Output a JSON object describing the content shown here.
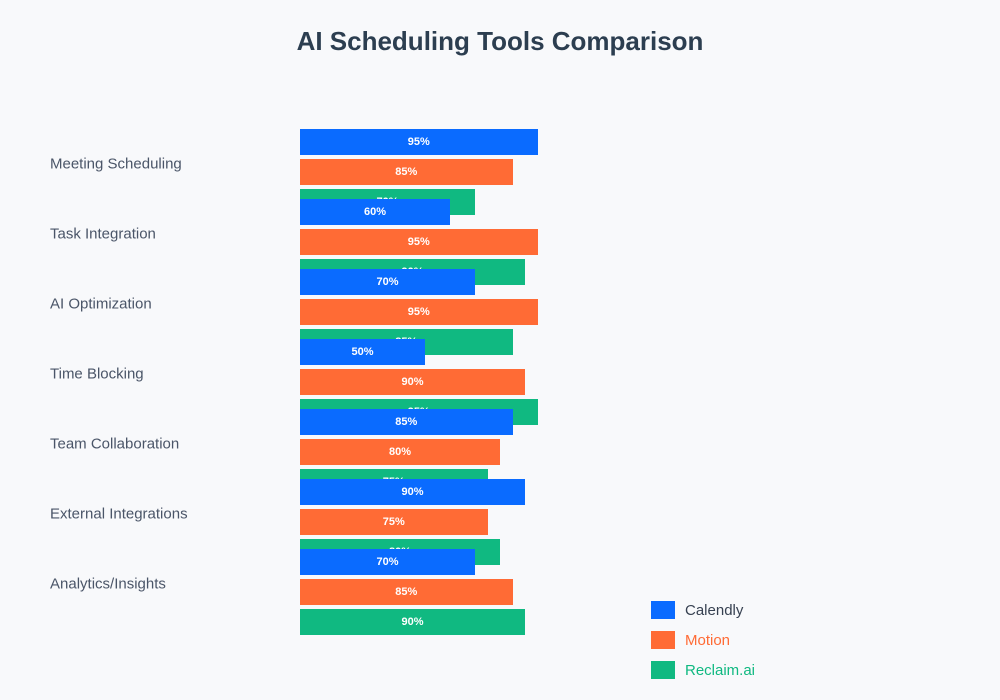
{
  "title": "AI Scheduling Tools Comparison",
  "colors": {
    "background": "#f8f9fb",
    "title_text": "#2c3e50",
    "category_label_text": "#4a5568",
    "bar_value_text": "#ffffff",
    "calendly_blue": "#0a6bff",
    "motion_orange": "#ff6b35",
    "reclaim_green": "#10b981"
  },
  "chart_data": {
    "type": "bar",
    "orientation": "horizontal",
    "title": "AI Scheduling Tools Comparison",
    "xlabel": "",
    "ylabel": "",
    "xlim": [
      0,
      100
    ],
    "grid": false,
    "axes_visible": false,
    "value_suffix": "%",
    "bar_labels": "inside-center-white",
    "legend_position": "bottom-right",
    "categories": [
      "Meeting Scheduling",
      "Task Integration",
      "AI Optimization",
      "Time Blocking",
      "Team Collaboration",
      "External Integrations",
      "Analytics/Insights"
    ],
    "series": [
      {
        "name": "Calendly",
        "color": "#0a6bff",
        "legend_text_color": "#374151",
        "values": [
          95,
          60,
          70,
          50,
          85,
          90,
          70
        ]
      },
      {
        "name": "Motion",
        "color": "#ff6b35",
        "legend_text_color": "#ff6b35",
        "values": [
          85,
          95,
          95,
          90,
          80,
          75,
          85
        ]
      },
      {
        "name": "Reclaim.ai",
        "color": "#10b981",
        "legend_text_color": "#10b981",
        "values": [
          70,
          90,
          85,
          95,
          75,
          80,
          90
        ]
      }
    ]
  },
  "legend": {
    "items": [
      {
        "label": "Calendly"
      },
      {
        "label": "Motion"
      },
      {
        "label": "Reclaim.ai"
      }
    ]
  }
}
